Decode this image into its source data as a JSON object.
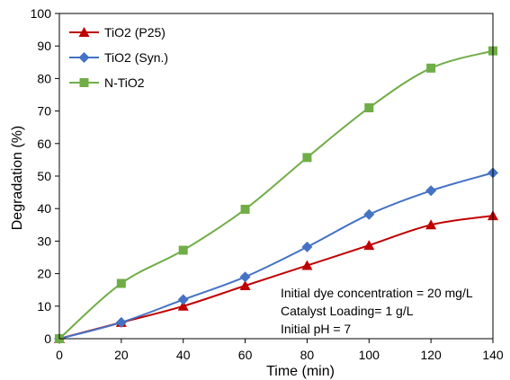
{
  "chart_data": {
    "type": "line",
    "title": "",
    "xlabel": "Time (min)",
    "ylabel": "Degradation (%)",
    "x": [
      0,
      20,
      40,
      60,
      80,
      100,
      120,
      140
    ],
    "xlim": [
      0,
      140
    ],
    "ylim": [
      0,
      100
    ],
    "xticks": [
      0,
      20,
      40,
      60,
      80,
      100,
      120,
      140
    ],
    "yticks": [
      0,
      10,
      20,
      30,
      40,
      50,
      60,
      70,
      80,
      90,
      100
    ],
    "grid": false,
    "legend_position": "top-left",
    "series": [
      {
        "name": "TiO2 (P25)",
        "color": "#c00000",
        "marker": "triangle",
        "values": [
          0,
          5,
          10,
          16.3,
          22.5,
          28.7,
          35,
          37.8
        ]
      },
      {
        "name": "TiO2 (Syn.)",
        "color": "#4472c4",
        "marker": "diamond",
        "values": [
          0,
          5,
          12,
          19,
          28.2,
          38.2,
          45.5,
          51
        ]
      },
      {
        "name": "N-TiO2",
        "color": "#70ad47",
        "marker": "square",
        "values": [
          0,
          17,
          27.2,
          39.8,
          55.7,
          71,
          83.2,
          88.5
        ]
      }
    ],
    "annotations": [
      "Initial dye concentration = 20 mg/L",
      "Catalyst Loading= 1 g/L",
      "Initial pH = 7"
    ]
  }
}
